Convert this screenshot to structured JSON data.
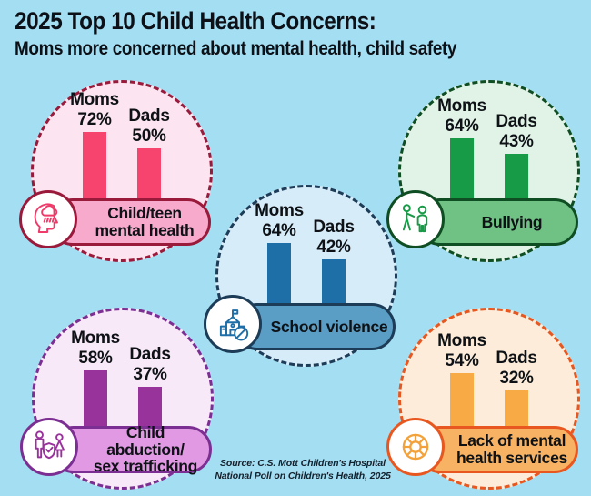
{
  "header": {
    "title": "2025 Top 10 Child Health Concerns:",
    "subtitle": "Moms more concerned about mental health, child safety"
  },
  "source": {
    "line1": "Source: C.S. Mott Children's Hospital",
    "line2": "National Poll on Children's Health, 2025"
  },
  "background_color": "#a3def2",
  "chart_data": {
    "type": "bar",
    "unit": "percent",
    "series": [
      "Moms",
      "Dads"
    ],
    "categories": [
      "Child/teen mental health",
      "Bullying",
      "School violence",
      "Child abduction/sex trafficking",
      "Lack of mental health services"
    ],
    "values": {
      "Moms": [
        72,
        64,
        64,
        58,
        54
      ],
      "Dads": [
        50,
        43,
        42,
        37,
        32
      ]
    },
    "legend_position": "above-bars",
    "grid": false
  },
  "concerns": [
    {
      "id": "child-teen-mental-health",
      "label_line1": "Child/teen",
      "label_line2": "mental health",
      "icon": "head-rain-cloud",
      "moms_label": "Moms",
      "moms_value": 72,
      "moms_pct": "72%",
      "dads_label": "Dads",
      "dads_value": 50,
      "dads_pct": "50%",
      "colors": {
        "border": "#9a1a3b",
        "fill": "#fce5f0",
        "bar": "#f6446e",
        "pill": "#f8aacd",
        "icon": "#ee3b6a"
      }
    },
    {
      "id": "bullying",
      "label_line1": "Bullying",
      "label_line2": "",
      "icon": "two-people-bullying",
      "moms_label": "Moms",
      "moms_value": 64,
      "moms_pct": "64%",
      "dads_label": "Dads",
      "dads_value": 43,
      "dads_pct": "43%",
      "colors": {
        "border": "#0f4d22",
        "fill": "#e1f3e7",
        "bar": "#189b47",
        "pill": "#6fc283",
        "icon": "#189b47"
      }
    },
    {
      "id": "school-violence",
      "label_line1": "School violence",
      "label_line2": "",
      "icon": "school-prohibition",
      "moms_label": "Moms",
      "moms_value": 64,
      "moms_pct": "64%",
      "dads_label": "Dads",
      "dads_value": 42,
      "dads_pct": "42%",
      "colors": {
        "border": "#1d3c58",
        "fill": "#d7ecf9",
        "bar": "#1e6fa8",
        "pill": "#5a9ec6",
        "icon": "#1e6fa8"
      }
    },
    {
      "id": "child-abduction-sex-trafficking",
      "label_line1": "Child abduction/",
      "label_line2": "sex trafficking",
      "icon": "figures-shield-check",
      "moms_label": "Moms",
      "moms_value": 58,
      "moms_pct": "58%",
      "dads_label": "Dads",
      "dads_value": 37,
      "dads_pct": "37%",
      "colors": {
        "border": "#7c2f92",
        "fill": "#f8e9f8",
        "bar": "#99339c",
        "pill": "#e099e2",
        "icon": "#99339c"
      }
    },
    {
      "id": "lack-of-mental-health-services",
      "label_line1": "Lack of mental",
      "label_line2": "health services",
      "icon": "lifebuoy",
      "moms_label": "Moms",
      "moms_value": 54,
      "moms_pct": "54%",
      "dads_label": "Dads",
      "dads_value": 32,
      "dads_pct": "32%",
      "colors": {
        "border": "#e8571f",
        "fill": "#fcecd9",
        "bar": "#f8ab44",
        "pill": "#f7b263",
        "icon": "#f3a23b"
      }
    }
  ]
}
